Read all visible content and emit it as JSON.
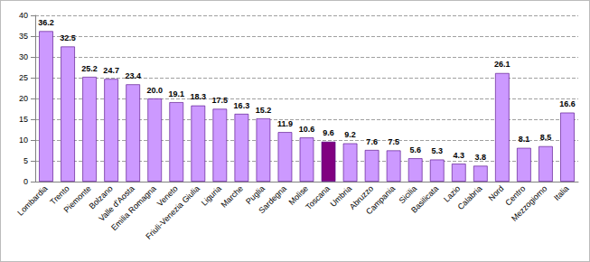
{
  "chart_data": {
    "type": "bar",
    "categories": [
      "Lombardia",
      "Trento",
      "Piemonte",
      "Bolzano",
      "Valle d'Aosta",
      "Emilia Romagna",
      "Veneto",
      "Friuli-Venezia Giulia",
      "Liguria",
      "Marche",
      "Puglia",
      "Sardegna",
      "Molise",
      "Toscana",
      "Umbria",
      "Abruzzo",
      "Campania",
      "Sicilia",
      "Basilicata",
      "Lazio",
      "Calabria",
      "Nord",
      "Centro",
      "Mezzogiorno",
      "Italia"
    ],
    "values": [
      36.2,
      32.5,
      25.2,
      24.7,
      23.4,
      20.0,
      19.1,
      18.3,
      17.5,
      16.3,
      15.2,
      11.9,
      10.6,
      9.6,
      9.2,
      7.6,
      7.5,
      5.6,
      5.3,
      4.3,
      3.8,
      26.1,
      8.1,
      8.5,
      16.6
    ],
    "value_labels": [
      "36.2",
      "32.5",
      "25.2",
      "24.7",
      "23.4",
      "20.0",
      "19.1",
      "18.3",
      "17.5",
      "16.3",
      "15.2",
      "11.9",
      "10.6",
      "9.6",
      "9.2",
      "7.6",
      "7.5",
      "5.6",
      "5.3",
      "4.3",
      "3.8",
      "26.1",
      "8.1",
      "8.5",
      "16.6"
    ],
    "colors": [
      "#cc99ff",
      "#cc99ff",
      "#cc99ff",
      "#cc99ff",
      "#cc99ff",
      "#cc99ff",
      "#cc99ff",
      "#cc99ff",
      "#cc99ff",
      "#cc99ff",
      "#cc99ff",
      "#cc99ff",
      "#cc99ff",
      "#800080",
      "#cc99ff",
      "#cc99ff",
      "#cc99ff",
      "#cc99ff",
      "#cc99ff",
      "#cc99ff",
      "#cc99ff",
      "#cc99ff",
      "#cc99ff",
      "#cc99ff",
      "#cc99ff"
    ],
    "ylim": [
      0,
      40
    ],
    "yticks": [
      0,
      5,
      10,
      15,
      20,
      25,
      30,
      35,
      40
    ],
    "grid": true,
    "data_labels": true
  }
}
